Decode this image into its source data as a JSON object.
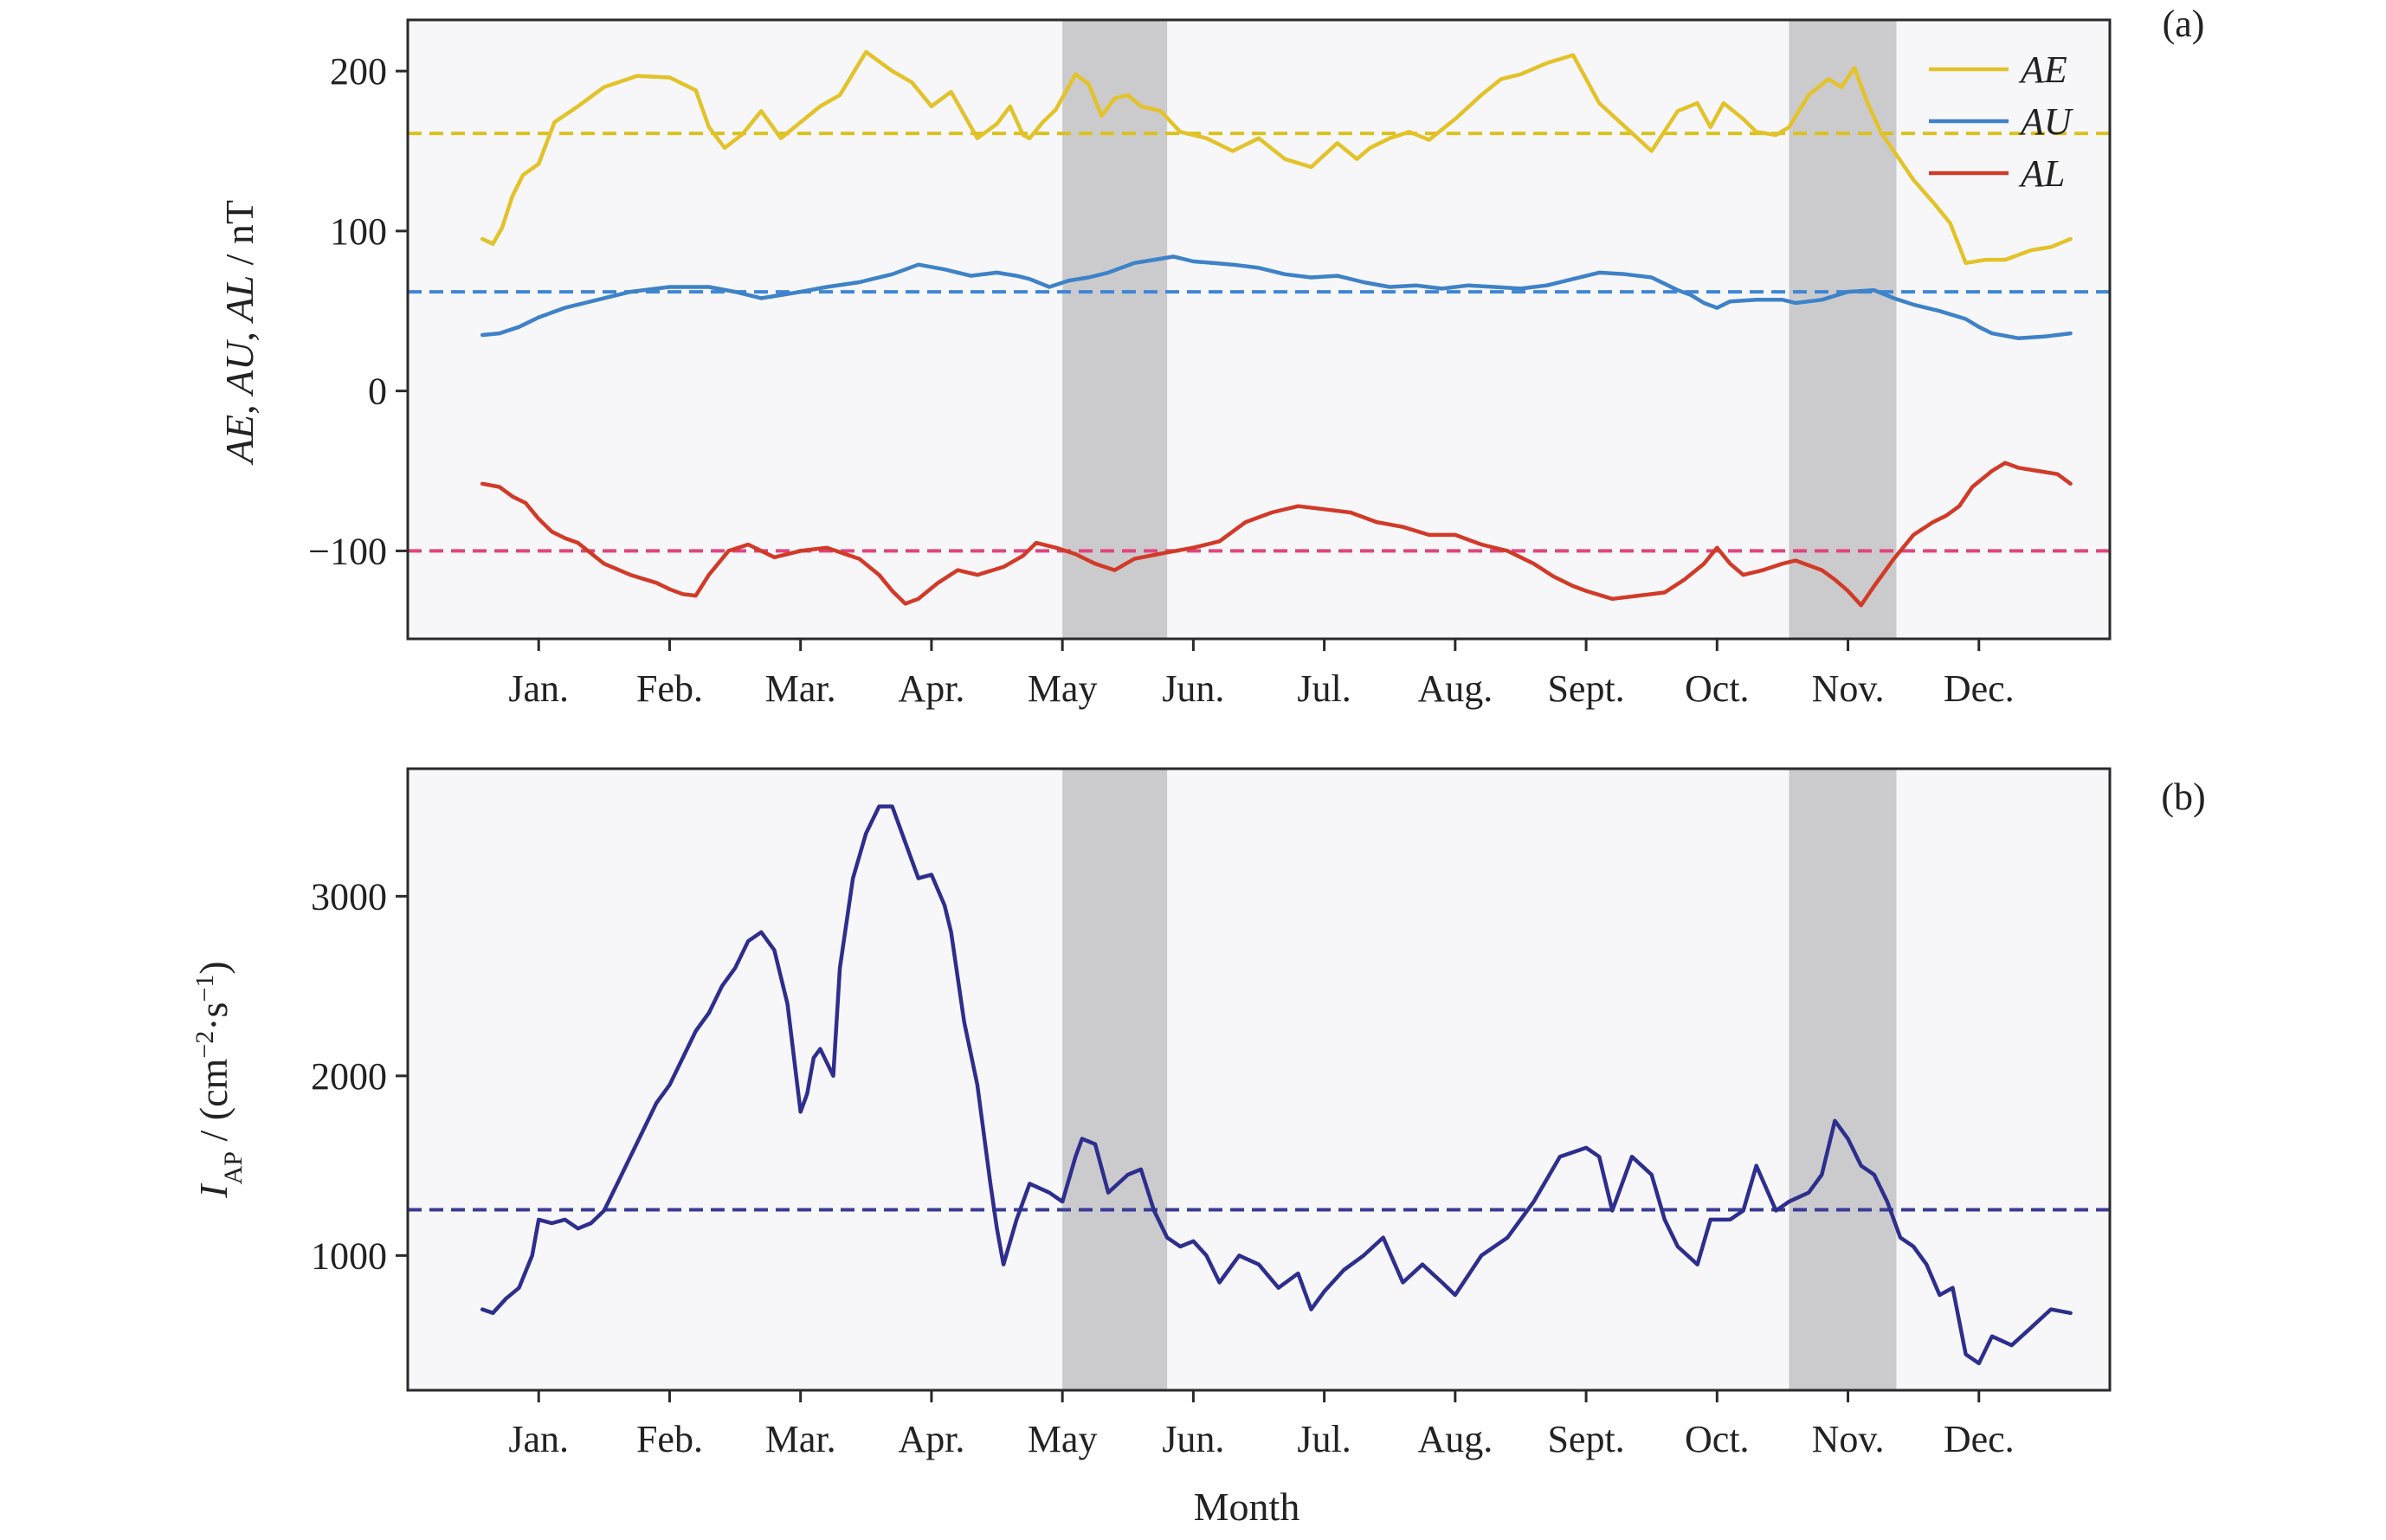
{
  "chart_data": [
    {
      "panel_label": "(a)",
      "type": "line",
      "ylabel_parts": [
        {
          "text": "AE",
          "italic": true
        },
        {
          "text": ", ",
          "italic": false
        },
        {
          "text": "AU",
          "italic": true
        },
        {
          "text": ", ",
          "italic": false
        },
        {
          "text": "AL",
          "italic": true
        },
        {
          "text": " / nT",
          "italic": false
        }
      ],
      "xlabel": "",
      "ylim": [
        -155,
        232
      ],
      "yticks": [
        200,
        100,
        0,
        -100
      ],
      "ytick_labels": [
        "200",
        "100",
        "0",
        "−100"
      ],
      "xlim": [
        0,
        13
      ],
      "xticks": [
        1,
        2,
        3,
        4,
        5,
        6,
        7,
        8,
        9,
        10,
        11,
        12
      ],
      "xtick_labels": [
        "Jan.",
        "Feb.",
        "Mar.",
        "Apr.",
        "May",
        "Jun.",
        "Jul.",
        "Aug.",
        "Sept.",
        "Oct.",
        "Nov.",
        "Dec."
      ],
      "grid": false,
      "legend_position": "top-right",
      "shaded_ranges": [
        [
          5.0,
          5.8
        ],
        [
          10.55,
          11.37
        ]
      ],
      "series": [
        {
          "name": "AE",
          "color": "#E3C22A",
          "mean": 161,
          "mean_color": "#D9C21E",
          "x": [
            0.57,
            0.65,
            0.72,
            0.8,
            0.88,
            1.0,
            1.12,
            1.3,
            1.5,
            1.75,
            2.0,
            2.2,
            2.3,
            2.42,
            2.55,
            2.7,
            2.85,
            3.0,
            3.15,
            3.3,
            3.5,
            3.7,
            3.85,
            4.0,
            4.15,
            4.35,
            4.5,
            4.6,
            4.7,
            4.75,
            4.85,
            4.95,
            5.1,
            5.2,
            5.3,
            5.4,
            5.5,
            5.6,
            5.75,
            5.9,
            6.1,
            6.3,
            6.5,
            6.7,
            6.9,
            7.1,
            7.25,
            7.35,
            7.5,
            7.65,
            7.8,
            8.0,
            8.2,
            8.35,
            8.5,
            8.7,
            8.9,
            9.1,
            9.3,
            9.5,
            9.7,
            9.85,
            9.95,
            10.05,
            10.2,
            10.3,
            10.45,
            10.55,
            10.7,
            10.85,
            10.95,
            11.05,
            11.15,
            11.25,
            11.35,
            11.5,
            11.65,
            11.78,
            11.9,
            12.05,
            12.2,
            12.4,
            12.55,
            12.7
          ],
          "values": [
            95,
            92,
            102,
            122,
            135,
            142,
            168,
            178,
            190,
            197,
            196,
            188,
            165,
            152,
            160,
            175,
            158,
            168,
            178,
            185,
            212,
            200,
            193,
            178,
            187,
            158,
            167,
            178,
            160,
            158,
            168,
            176,
            198,
            192,
            172,
            183,
            185,
            178,
            175,
            162,
            158,
            150,
            158,
            145,
            140,
            155,
            145,
            152,
            158,
            162,
            157,
            170,
            185,
            195,
            198,
            205,
            210,
            180,
            165,
            150,
            175,
            180,
            165,
            180,
            170,
            162,
            160,
            165,
            185,
            195,
            190,
            202,
            180,
            162,
            150,
            132,
            118,
            105,
            80,
            82,
            82,
            88,
            90,
            95
          ]
        },
        {
          "name": "AU",
          "color": "#3E82C8",
          "mean": 62,
          "mean_color": "#3F86D4",
          "x": [
            0.57,
            0.7,
            0.85,
            1.0,
            1.2,
            1.45,
            1.7,
            2.0,
            2.3,
            2.5,
            2.7,
            3.0,
            3.2,
            3.45,
            3.7,
            3.9,
            4.1,
            4.3,
            4.5,
            4.65,
            4.75,
            4.9,
            5.05,
            5.2,
            5.35,
            5.55,
            5.7,
            5.85,
            6.0,
            6.15,
            6.3,
            6.5,
            6.7,
            6.9,
            7.1,
            7.3,
            7.5,
            7.7,
            7.9,
            8.1,
            8.3,
            8.5,
            8.7,
            8.9,
            9.1,
            9.3,
            9.5,
            9.6,
            9.7,
            9.8,
            9.9,
            10.0,
            10.1,
            10.3,
            10.5,
            10.6,
            10.8,
            11.0,
            11.2,
            11.35,
            11.5,
            11.7,
            11.9,
            12.0,
            12.1,
            12.3,
            12.5,
            12.7
          ],
          "values": [
            35,
            36,
            40,
            46,
            52,
            57,
            62,
            65,
            65,
            62,
            58,
            62,
            65,
            68,
            73,
            79,
            76,
            72,
            74,
            72,
            70,
            65,
            69,
            71,
            74,
            80,
            82,
            84,
            81,
            80,
            79,
            77,
            73,
            71,
            72,
            68,
            65,
            66,
            64,
            66,
            65,
            64,
            66,
            70,
            74,
            73,
            71,
            67,
            63,
            60,
            55,
            52,
            56,
            57,
            57,
            55,
            57,
            62,
            63,
            58,
            54,
            50,
            45,
            40,
            36,
            33,
            34,
            36
          ]
        },
        {
          "name": "AL",
          "color": "#D23A28",
          "mean": -100,
          "mean_color": "#E0447E",
          "x": [
            0.57,
            0.7,
            0.8,
            0.9,
            1.0,
            1.1,
            1.2,
            1.3,
            1.5,
            1.7,
            1.9,
            2.0,
            2.1,
            2.2,
            2.3,
            2.45,
            2.6,
            2.8,
            3.0,
            3.2,
            3.45,
            3.6,
            3.7,
            3.8,
            3.9,
            4.05,
            4.2,
            4.35,
            4.55,
            4.7,
            4.8,
            4.95,
            5.1,
            5.25,
            5.4,
            5.55,
            5.8,
            6.0,
            6.2,
            6.4,
            6.6,
            6.8,
            7.0,
            7.2,
            7.4,
            7.6,
            7.8,
            8.0,
            8.2,
            8.4,
            8.6,
            8.75,
            8.9,
            9.0,
            9.2,
            9.4,
            9.6,
            9.75,
            9.9,
            10.0,
            10.1,
            10.2,
            10.35,
            10.5,
            10.6,
            10.8,
            10.9,
            11.0,
            11.1,
            11.2,
            11.35,
            11.5,
            11.65,
            11.75,
            11.85,
            11.95,
            12.1,
            12.2,
            12.3,
            12.45,
            12.6,
            12.7
          ],
          "values": [
            -58,
            -60,
            -66,
            -70,
            -80,
            -88,
            -92,
            -95,
            -108,
            -115,
            -120,
            -124,
            -127,
            -128,
            -115,
            -100,
            -96,
            -104,
            -100,
            -98,
            -105,
            -115,
            -125,
            -133,
            -130,
            -120,
            -112,
            -115,
            -110,
            -103,
            -95,
            -98,
            -102,
            -108,
            -112,
            -105,
            -101,
            -98,
            -94,
            -82,
            -76,
            -72,
            -74,
            -76,
            -82,
            -85,
            -90,
            -90,
            -96,
            -100,
            -108,
            -116,
            -122,
            -125,
            -130,
            -128,
            -126,
            -118,
            -108,
            -98,
            -108,
            -115,
            -112,
            -108,
            -106,
            -112,
            -118,
            -125,
            -134,
            -122,
            -105,
            -90,
            -82,
            -78,
            -72,
            -60,
            -50,
            -45,
            -48,
            -50,
            -52,
            -58
          ]
        }
      ]
    },
    {
      "panel_label": "(b)",
      "type": "line",
      "ylabel_parts": [
        {
          "text": "I",
          "italic": true
        },
        {
          "text": "AP",
          "italic": false,
          "sub": true
        },
        {
          "text": " / (cm",
          "italic": false
        },
        {
          "text": "−2",
          "italic": false,
          "sup": true
        },
        {
          "text": "·s",
          "italic": false
        },
        {
          "text": "−1",
          "italic": false,
          "sup": true
        },
        {
          "text": ")",
          "italic": false
        }
      ],
      "xlabel": "Month",
      "ylim": [
        250,
        3710
      ],
      "yticks": [
        3000,
        2000,
        1000
      ],
      "ytick_labels": [
        "3000",
        "2000",
        "1000"
      ],
      "xlim": [
        0,
        13
      ],
      "xticks": [
        1,
        2,
        3,
        4,
        5,
        6,
        7,
        8,
        9,
        10,
        11,
        12
      ],
      "xtick_labels": [
        "Jan.",
        "Feb.",
        "Mar.",
        "Apr.",
        "May",
        "Jun.",
        "Jul.",
        "Aug.",
        "Sept.",
        "Oct.",
        "Nov.",
        "Dec."
      ],
      "grid": false,
      "shaded_ranges": [
        [
          5.0,
          5.8
        ],
        [
          10.55,
          11.37
        ]
      ],
      "series": [
        {
          "name": "IAP",
          "color": "#2E2E8E",
          "mean": 1255,
          "mean_color": "#3A3A96",
          "x": [
            0.57,
            0.65,
            0.75,
            0.85,
            0.95,
            1.0,
            1.1,
            1.2,
            1.3,
            1.4,
            1.5,
            1.6,
            1.7,
            1.8,
            1.9,
            2.0,
            2.1,
            2.2,
            2.3,
            2.4,
            2.5,
            2.6,
            2.7,
            2.8,
            2.9,
            3.0,
            3.05,
            3.1,
            3.15,
            3.25,
            3.3,
            3.4,
            3.5,
            3.6,
            3.7,
            3.85,
            3.9,
            4.0,
            4.1,
            4.15,
            4.25,
            4.35,
            4.45,
            4.5,
            4.55,
            4.65,
            4.75,
            4.9,
            5.0,
            5.1,
            5.15,
            5.25,
            5.35,
            5.5,
            5.6,
            5.7,
            5.8,
            5.9,
            6.0,
            6.1,
            6.2,
            6.35,
            6.5,
            6.65,
            6.8,
            6.9,
            7.0,
            7.15,
            7.3,
            7.45,
            7.6,
            7.75,
            7.9,
            8.0,
            8.2,
            8.4,
            8.6,
            8.8,
            9.0,
            9.1,
            9.2,
            9.35,
            9.5,
            9.6,
            9.7,
            9.85,
            9.95,
            10.1,
            10.2,
            10.3,
            10.45,
            10.55,
            10.7,
            10.8,
            10.9,
            11.0,
            11.1,
            11.2,
            11.3,
            11.4,
            11.5,
            11.6,
            11.7,
            11.8,
            11.9,
            12.0,
            12.1,
            12.25,
            12.4,
            12.55,
            12.7
          ],
          "values": [
            700,
            680,
            760,
            820,
            1000,
            1200,
            1180,
            1200,
            1150,
            1180,
            1250,
            1400,
            1550,
            1700,
            1850,
            1950,
            2100,
            2250,
            2350,
            2500,
            2600,
            2750,
            2800,
            2700,
            2400,
            1800,
            1900,
            2100,
            2150,
            2000,
            2600,
            3100,
            3350,
            3500,
            3500,
            3200,
            3100,
            3120,
            2950,
            2800,
            2300,
            1950,
            1400,
            1150,
            950,
            1200,
            1400,
            1350,
            1300,
            1550,
            1650,
            1620,
            1350,
            1450,
            1480,
            1250,
            1100,
            1050,
            1080,
            1000,
            850,
            1000,
            950,
            820,
            900,
            700,
            800,
            920,
            1000,
            1100,
            850,
            950,
            850,
            780,
            1000,
            1100,
            1300,
            1550,
            1600,
            1550,
            1250,
            1550,
            1450,
            1200,
            1050,
            950,
            1200,
            1200,
            1250,
            1500,
            1250,
            1300,
            1350,
            1450,
            1750,
            1650,
            1500,
            1450,
            1300,
            1100,
            1050,
            950,
            780,
            820,
            450,
            400,
            550,
            500,
            600,
            700,
            680
          ]
        }
      ]
    }
  ]
}
